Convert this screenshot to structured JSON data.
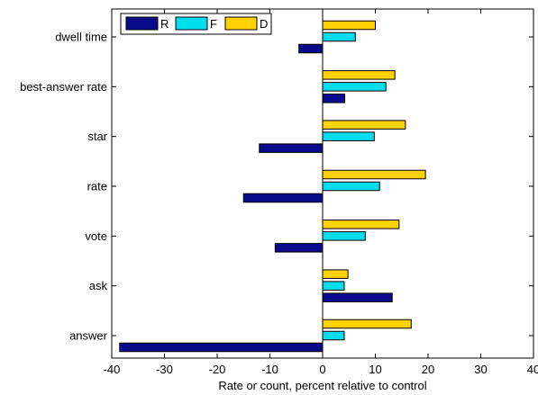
{
  "chart_data": {
    "type": "bar",
    "orientation": "horizontal",
    "categories": [
      "dwell time",
      "best-answer rate",
      "star",
      "rate",
      "vote",
      "ask",
      "answer"
    ],
    "series": [
      {
        "name": "R",
        "color": "#0a0a8c",
        "values": [
          -4.5,
          4.2,
          -12,
          -15,
          -9,
          13.2,
          -38.5
        ]
      },
      {
        "name": "F",
        "color": "#00ddee",
        "values": [
          6.2,
          12,
          9.8,
          10.8,
          8.1,
          4.1,
          4.1
        ]
      },
      {
        "name": "D",
        "color": "#ffd200",
        "values": [
          10,
          13.7,
          15.7,
          19.5,
          14.5,
          4.8,
          16.8
        ]
      }
    ],
    "xlabel": "Rate or count, percent relative to control",
    "ylabel": "",
    "title": "",
    "xlim": [
      -40,
      40
    ],
    "xticks": [
      -40,
      -30,
      -20,
      -10,
      0,
      10,
      20,
      30,
      40
    ],
    "grid": false,
    "legend_position": "top-left",
    "legend_orientation": "horizontal"
  }
}
